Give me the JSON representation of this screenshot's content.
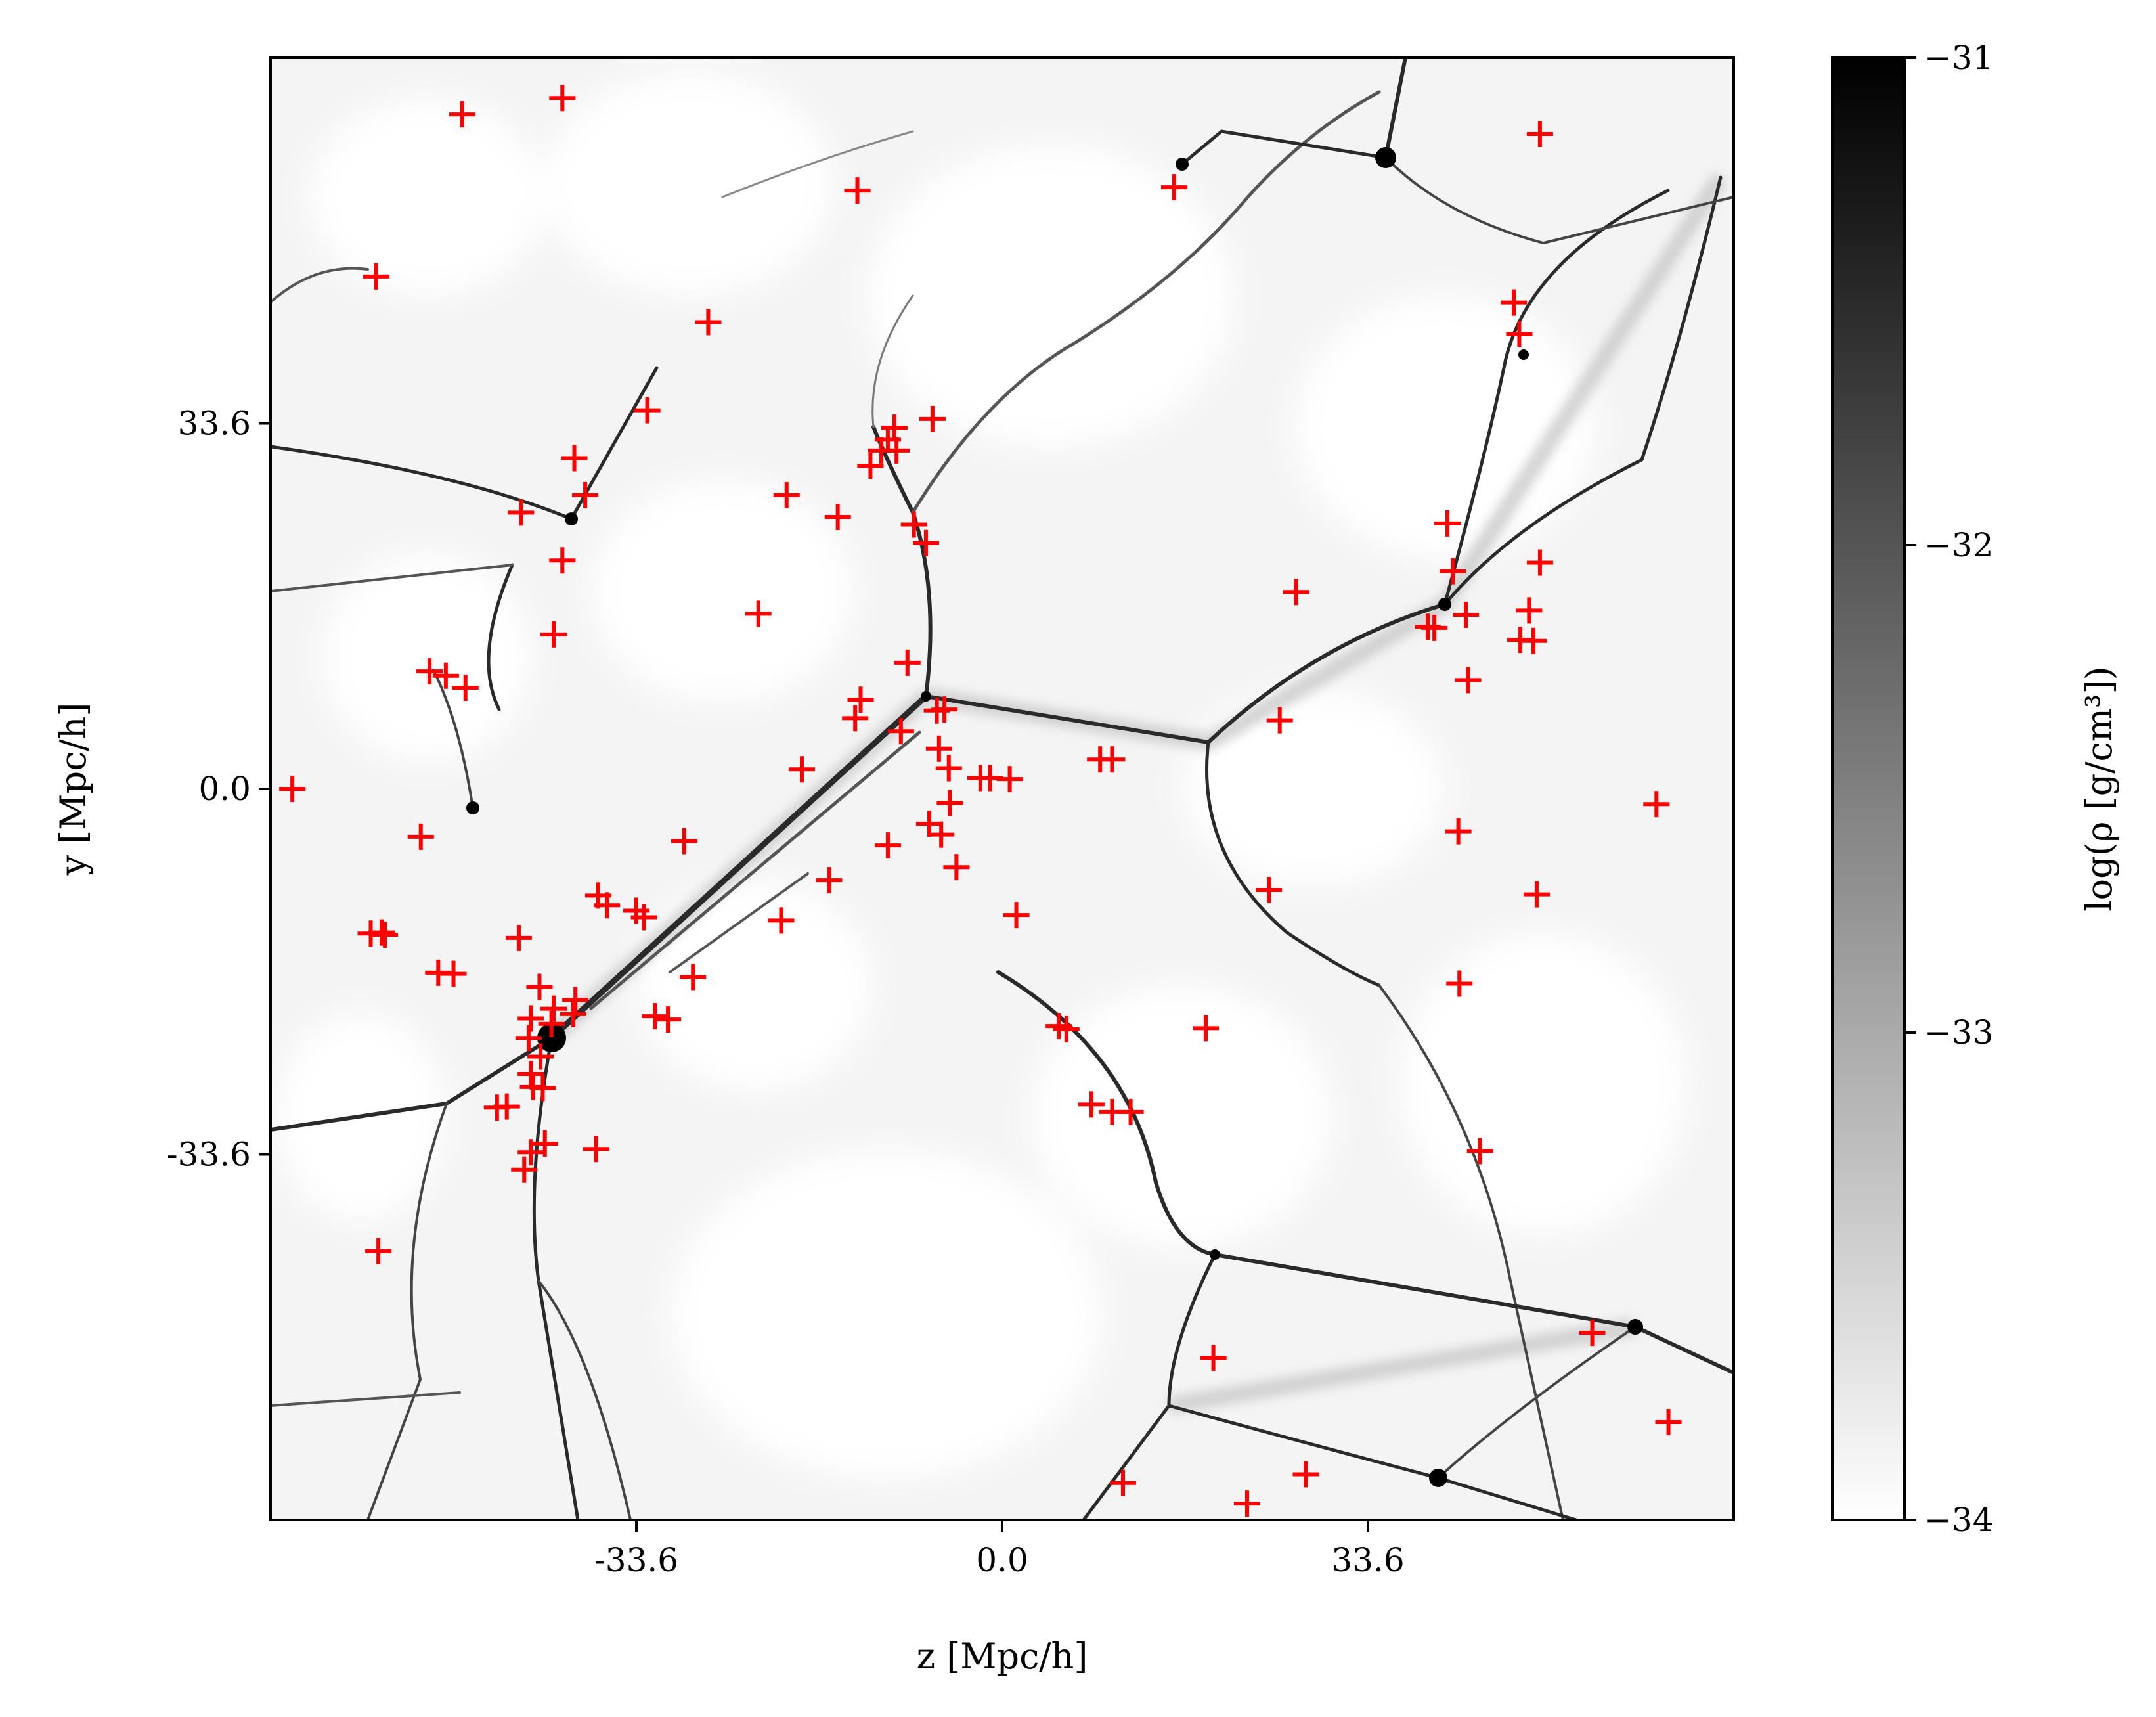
{
  "chart_data": {
    "type": "scatter",
    "background": "density-map",
    "xlabel": "z [Mpc/h]",
    "ylabel": "y [Mpc/h]",
    "xlim": [
      -67.2,
      67.2
    ],
    "ylim": [
      -67.2,
      67.2
    ],
    "xticks": [
      -33.6,
      0.0,
      33.6
    ],
    "yticks": [
      -33.6,
      0.0,
      33.6
    ],
    "xtick_labels": [
      "-33.6",
      "0.0",
      "33.6"
    ],
    "ytick_labels": [
      "-33.6",
      "0.0",
      "33.6"
    ],
    "grid": false,
    "marker": "+",
    "marker_color": "#ff0000",
    "colorbar": {
      "label": "log(ρ [g/cm³])",
      "range": [
        -34,
        -31
      ],
      "ticks": [
        -34,
        -33,
        -32,
        -31
      ],
      "tick_labels": [
        "−34",
        "−33",
        "−32",
        "−31"
      ],
      "colormap": "gray_r"
    },
    "points": [
      [
        -40.4,
        63.5
      ],
      [
        -49.6,
        62.0
      ],
      [
        -13.3,
        55.0
      ],
      [
        15.8,
        55.3
      ],
      [
        49.4,
        60.2
      ],
      [
        -57.5,
        47.1
      ],
      [
        -27.0,
        42.9
      ],
      [
        -32.6,
        34.8
      ],
      [
        -39.3,
        30.4
      ],
      [
        -38.3,
        27.0
      ],
      [
        -44.2,
        25.4
      ],
      [
        -40.4,
        21.0
      ],
      [
        -41.2,
        14.2
      ],
      [
        -19.8,
        27.0
      ],
      [
        -15.1,
        25.0
      ],
      [
        -11.1,
        31.1
      ],
      [
        -9.9,
        33.2
      ],
      [
        -10.5,
        32.1
      ],
      [
        -9.7,
        31.1
      ],
      [
        -12.1,
        29.7
      ],
      [
        -6.4,
        34.0
      ],
      [
        -8.1,
        24.3
      ],
      [
        -7.0,
        22.6
      ],
      [
        -22.4,
        16.1
      ],
      [
        -8.7,
        11.6
      ],
      [
        -13.0,
        8.2
      ],
      [
        -13.5,
        6.5
      ],
      [
        -9.3,
        5.3
      ],
      [
        -6.0,
        7.2
      ],
      [
        -5.3,
        7.3
      ],
      [
        -18.4,
        1.8
      ],
      [
        -5.8,
        3.7
      ],
      [
        -4.9,
        1.9
      ],
      [
        -2.0,
        1.0
      ],
      [
        -1.1,
        1.0
      ],
      [
        0.7,
        0.9
      ],
      [
        9.0,
        2.7
      ],
      [
        10.1,
        2.7
      ],
      [
        -4.8,
        -1.3
      ],
      [
        -6.7,
        -3.2
      ],
      [
        -5.6,
        -4.2
      ],
      [
        -10.5,
        -5.2
      ],
      [
        -4.2,
        -7.2
      ],
      [
        -15.9,
        -8.4
      ],
      [
        -20.3,
        -12.1
      ],
      [
        1.3,
        -11.6
      ],
      [
        -29.2,
        -4.8
      ],
      [
        -33.6,
        -11.2
      ],
      [
        -32.9,
        -11.8
      ],
      [
        -36.3,
        -10.7
      ],
      [
        -37.1,
        -9.8
      ],
      [
        -52.6,
        10.8
      ],
      [
        -51.1,
        10.4
      ],
      [
        -49.3,
        9.3
      ],
      [
        -53.4,
        -4.4
      ],
      [
        -57.0,
        -13.2
      ],
      [
        -58.0,
        -13.3
      ],
      [
        -56.7,
        -13.4
      ],
      [
        -51.8,
        -16.9
      ],
      [
        -50.4,
        -17.0
      ],
      [
        -44.4,
        -13.7
      ],
      [
        -42.5,
        -18.2
      ],
      [
        -41.2,
        -20.2
      ],
      [
        -39.2,
        -19.4
      ],
      [
        -43.3,
        -21.1
      ],
      [
        -43.5,
        -22.9
      ],
      [
        -42.4,
        -24.6
      ],
      [
        -41.4,
        -21.6
      ],
      [
        -39.4,
        -20.7
      ],
      [
        -43.3,
        -26.2
      ],
      [
        -43.1,
        -27.4
      ],
      [
        -42.2,
        -27.5
      ],
      [
        -45.5,
        -29.2
      ],
      [
        -46.4,
        -29.3
      ],
      [
        -42.0,
        -32.6
      ],
      [
        -43.9,
        -35.0
      ],
      [
        -43.3,
        -33.4
      ],
      [
        -37.3,
        -33.1
      ],
      [
        -28.4,
        -17.3
      ],
      [
        -31.9,
        -20.9
      ],
      [
        -30.7,
        -21.2
      ],
      [
        -57.3,
        -42.5
      ],
      [
        -65.2,
        0.0
      ],
      [
        5.9,
        -22.1
      ],
      [
        5.2,
        -21.8
      ],
      [
        8.2,
        -29.0
      ],
      [
        10.1,
        -29.7
      ],
      [
        11.8,
        -29.7
      ],
      [
        18.7,
        -22.0
      ],
      [
        27.0,
        18.1
      ],
      [
        25.5,
        6.3
      ],
      [
        24.5,
        -9.3
      ],
      [
        40.9,
        24.4
      ],
      [
        39.7,
        14.8
      ],
      [
        39.1,
        14.9
      ],
      [
        41.4,
        20.0
      ],
      [
        42.6,
        16.0
      ],
      [
        41.9,
        -3.9
      ],
      [
        42.0,
        -17.9
      ],
      [
        43.9,
        -33.3
      ],
      [
        49.4,
        20.8
      ],
      [
        48.4,
        16.4
      ],
      [
        48.8,
        13.6
      ],
      [
        47.6,
        13.7
      ],
      [
        42.8,
        10.0
      ],
      [
        47.0,
        44.7
      ],
      [
        47.5,
        41.8
      ],
      [
        49.1,
        -9.7
      ],
      [
        54.2,
        -50.0
      ],
      [
        60.1,
        -1.4
      ],
      [
        61.2,
        -58.2
      ],
      [
        19.4,
        -52.3
      ],
      [
        11.1,
        -63.8
      ],
      [
        27.9,
        -63.0
      ],
      [
        22.5,
        -65.7
      ]
    ]
  }
}
